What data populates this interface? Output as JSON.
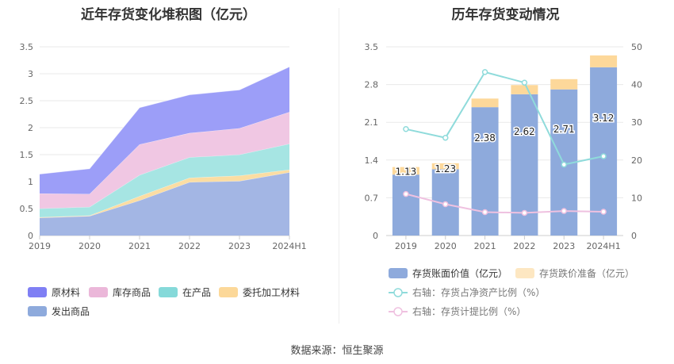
{
  "left_chart": {
    "title": "近年存货变化堆积图（亿元）",
    "chart_data": {
      "type": "area",
      "stacked": true,
      "title": "近年存货变化堆积图（亿元）",
      "categories": [
        "2019",
        "2020",
        "2021",
        "2022",
        "2023",
        "2024H1"
      ],
      "ylim": [
        0,
        3.5
      ],
      "yticks": [
        "0",
        "0.5",
        "1",
        "1.5",
        "2",
        "2.5",
        "3",
        "3.5"
      ],
      "grid": true,
      "legend_position": "bottom",
      "series": [
        {
          "name": "发出商品",
          "color": "#a3b6e4",
          "values": [
            0.33,
            0.36,
            0.65,
            0.99,
            1.01,
            1.17
          ]
        },
        {
          "name": "委托加工材料",
          "color": "#fbdda3",
          "values": [
            0.01,
            0.01,
            0.08,
            0.08,
            0.1,
            0.05
          ]
        },
        {
          "name": "在产品",
          "color": "#a6e5e3",
          "values": [
            0.16,
            0.16,
            0.39,
            0.38,
            0.39,
            0.48
          ]
        },
        {
          "name": "库存商品",
          "color": "#f0c7e3",
          "values": [
            0.28,
            0.24,
            0.57,
            0.45,
            0.49,
            0.59
          ]
        },
        {
          "name": "原材料",
          "color": "#9c9ef8",
          "values": [
            0.36,
            0.47,
            0.68,
            0.71,
            0.71,
            0.84
          ]
        }
      ],
      "legend_order": [
        "原材料",
        "库存商品",
        "在产品",
        "委托加工材料",
        "发出商品"
      ],
      "legend_colors": {
        "原材料": "#7f7ff4",
        "库存商品": "#ebb7d9",
        "在产品": "#85d9d9",
        "委托加工材料": "#fcd899",
        "发出商品": "#8eaadc"
      }
    }
  },
  "right_chart": {
    "title": "历年存货变动情况",
    "chart_data": {
      "type": "bar",
      "title": "历年存货变动情况",
      "categories": [
        "2019",
        "2020",
        "2021",
        "2022",
        "2023",
        "2024H1"
      ],
      "ylim": [
        0,
        3.5
      ],
      "yticks": [
        "0",
        "0.7",
        "1.4",
        "2.1",
        "2.8",
        "3.5"
      ],
      "y2lim": [
        0,
        50
      ],
      "y2ticks": [
        "0",
        "10",
        "20",
        "30",
        "40",
        "50"
      ],
      "grid": true,
      "legend_position": "bottom",
      "bar_series": [
        {
          "name": "存货账面价值（亿元）",
          "color": "#8eaadc",
          "values": [
            1.13,
            1.23,
            2.38,
            2.62,
            2.71,
            3.12
          ],
          "labels": [
            "1.13",
            "1.23",
            "2.38",
            "2.62",
            "2.71",
            "3.12"
          ]
        },
        {
          "name": "存货跌价准备（亿元）",
          "color": "#fdd89a",
          "legend_color": "#fde7c2",
          "values": [
            0.14,
            0.11,
            0.16,
            0.17,
            0.19,
            0.22
          ]
        }
      ],
      "line_series": [
        {
          "name": "右轴：存货占净资产比例（%）",
          "color": "#8fdbdb",
          "values": [
            28.2,
            25.9,
            43.3,
            40.5,
            18.8,
            21.0
          ]
        },
        {
          "name": "右轴：存货计提比例（%）",
          "color": "#efc1e0",
          "values": [
            11.0,
            8.3,
            6.2,
            6.0,
            6.5,
            6.3
          ]
        }
      ]
    }
  },
  "source": "数据来源：恒生聚源"
}
